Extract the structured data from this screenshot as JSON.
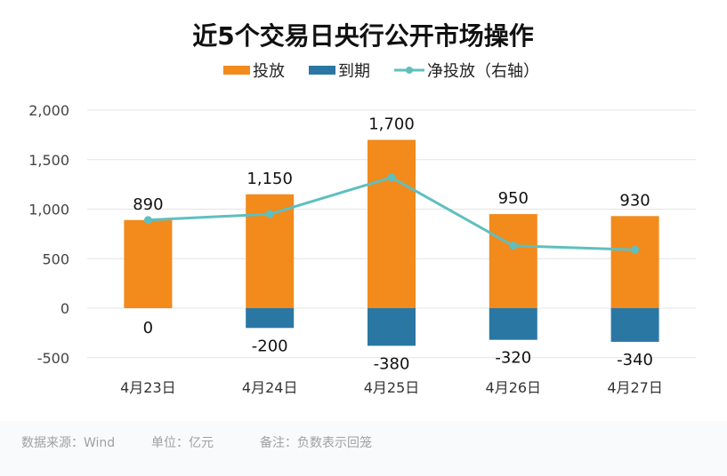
{
  "chart_data": {
    "type": "bar",
    "title": "近5个交易日央行公开市场操作",
    "categories": [
      "4月23日",
      "4月24日",
      "4月25日",
      "4月26日",
      "4月27日"
    ],
    "series": [
      {
        "name": "投放",
        "kind": "bar",
        "color": "#f28a1c",
        "values": [
          890,
          1150,
          1700,
          950,
          930
        ],
        "labels": [
          "890",
          "1,150",
          "1,700",
          "950",
          "930"
        ]
      },
      {
        "name": "到期",
        "kind": "bar",
        "color": "#2a77a4",
        "values": [
          0,
          -200,
          -380,
          -320,
          -340
        ],
        "labels": [
          "0",
          "-200",
          "-380",
          "-320",
          "-340"
        ]
      },
      {
        "name": "净投放（右轴）",
        "kind": "line",
        "color": "#5fbfbf",
        "values": [
          890,
          950,
          1320,
          630,
          590
        ]
      }
    ],
    "yticks": [
      2000,
      1500,
      1000,
      500,
      0,
      -500
    ],
    "ytick_labels": [
      "2,000",
      "1,500",
      "1,000",
      "500",
      "0",
      "-500"
    ],
    "ylim": [
      -500,
      2000
    ],
    "legend": "top",
    "grid": true
  },
  "footer": {
    "source": "数据来源：Wind",
    "unit": "单位：亿元",
    "note": "备注：负数表示回笼"
  }
}
